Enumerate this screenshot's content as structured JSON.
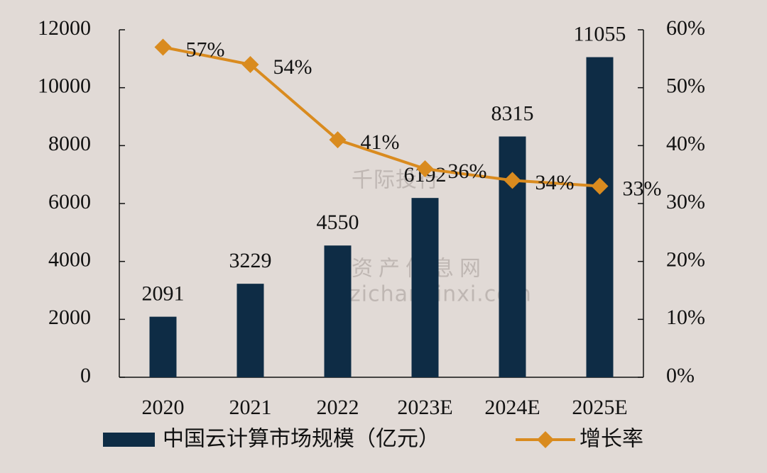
{
  "chart_data": {
    "type": "bar-line",
    "categories": [
      "2020",
      "2021",
      "2022",
      "2023E",
      "2024E",
      "2025E"
    ],
    "series": [
      {
        "name": "中国云计算市场规模（亿元）",
        "type": "bar",
        "color": "#0e2c45",
        "values": [
          2091,
          3229,
          4550,
          6192,
          8315,
          11055
        ]
      },
      {
        "name": "增长率",
        "type": "line",
        "axis": "y2",
        "color": "#d98b1f",
        "values": [
          57,
          54,
          41,
          36,
          34,
          33
        ],
        "value_labels": [
          "57%",
          "54%",
          "41%",
          "36%",
          "34%",
          "33%"
        ]
      }
    ],
    "ylim": [
      0,
      12000
    ],
    "yticks": [
      0,
      2000,
      4000,
      6000,
      8000,
      10000,
      12000
    ],
    "y2lim": [
      0,
      60
    ],
    "y2ticks": [
      {
        "value": 0,
        "label": "0%"
      },
      {
        "value": 10,
        "label": "10%"
      },
      {
        "value": 20,
        "label": "20%"
      },
      {
        "value": 30,
        "label": "30%"
      },
      {
        "value": 40,
        "label": "40%"
      },
      {
        "value": 50,
        "label": "50%"
      },
      {
        "value": 60,
        "label": "60%"
      }
    ],
    "legend": "bottom",
    "watermarks": [
      "千际投行",
      "资产信息网",
      "zichanxinxi.com"
    ]
  }
}
